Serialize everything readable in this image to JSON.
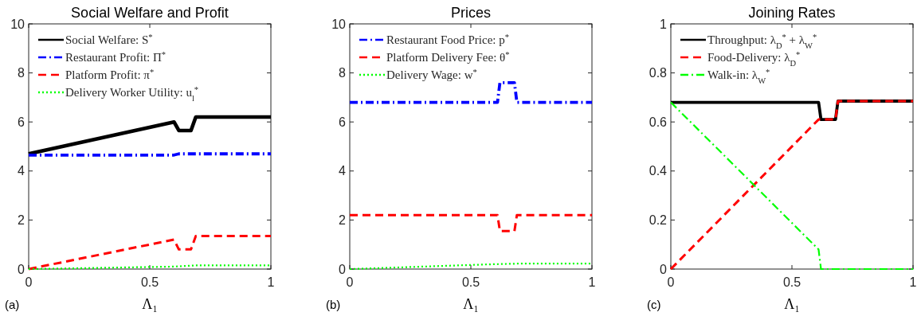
{
  "chart_data": [
    {
      "type": "line",
      "title": "Social Welfare and Profit",
      "xlabel": "Λ₁",
      "annotations": [
        "(a)"
      ],
      "xlim": [
        0,
        1
      ],
      "xticks": [
        0,
        0.5,
        1
      ],
      "ylim": [
        0,
        10
      ],
      "yticks": [
        0,
        2,
        4,
        6,
        8,
        10
      ],
      "grid": false,
      "legend": "top left",
      "series": [
        {
          "name": "Social Welfare: S$^{*}$",
          "color": "#000000",
          "line_style": "solid",
          "x": [
            0,
            0.6,
            0.62,
            0.67,
            0.69,
            1
          ],
          "values": [
            4.7,
            6.0,
            5.65,
            5.65,
            6.2,
            6.2
          ]
        },
        {
          "name": "Restaurant Profit: Π$^{*}$",
          "color": "#0000ff",
          "line_style": "dashdot",
          "x": [
            0,
            0.6,
            0.62,
            1
          ],
          "values": [
            4.65,
            4.65,
            4.7,
            4.7
          ]
        },
        {
          "name": "Platform Profit: π$^{*}$",
          "color": "#ff0000",
          "line_style": "dashed",
          "x": [
            0,
            0.6,
            0.62,
            0.67,
            0.69,
            1
          ],
          "values": [
            0,
            1.2,
            0.8,
            0.8,
            1.35,
            1.35
          ]
        },
        {
          "name": "Delivery Worker Utility: u$_{l}$$^{*}$",
          "color": "#00ff00",
          "line_style": "dotted",
          "x": [
            0,
            0.6,
            0.69,
            1
          ],
          "values": [
            0,
            0.1,
            0.15,
            0.15
          ]
        }
      ]
    },
    {
      "type": "line",
      "title": "Prices",
      "xlabel": "Λ₁",
      "annotations": [
        "(b)"
      ],
      "xlim": [
        0,
        1
      ],
      "xticks": [
        0,
        0.5,
        1
      ],
      "ylim": [
        0,
        10
      ],
      "yticks": [
        0,
        2,
        4,
        6,
        8,
        10
      ],
      "grid": false,
      "legend": "top left",
      "series": [
        {
          "name": "Restaurant Food Price: p$^{*}$",
          "color": "#0000ff",
          "line_style": "dashdot",
          "x": [
            0,
            0.61,
            0.62,
            0.68,
            0.69,
            1
          ],
          "values": [
            6.8,
            6.8,
            7.6,
            7.6,
            6.8,
            6.8
          ]
        },
        {
          "name": "Platform Delivery Fee: θ$^{*}$",
          "color": "#ff0000",
          "line_style": "dashed",
          "x": [
            0,
            0.61,
            0.62,
            0.68,
            0.69,
            1
          ],
          "values": [
            2.2,
            2.2,
            1.55,
            1.55,
            2.2,
            2.2
          ]
        },
        {
          "name": "Delivery Wage: w$^{*}$",
          "color": "#00ff00",
          "line_style": "dotted",
          "x": [
            0,
            0.6,
            0.69,
            1
          ],
          "values": [
            0,
            0.2,
            0.22,
            0.22
          ]
        }
      ]
    },
    {
      "type": "line",
      "title": "Joining Rates",
      "xlabel": "Λ₁",
      "annotations": [
        "(c)"
      ],
      "xlim": [
        0,
        1
      ],
      "xticks": [
        0,
        0.5,
        1
      ],
      "ylim": [
        0,
        1
      ],
      "yticks": [
        0,
        0.2,
        0.4,
        0.6,
        0.8,
        1
      ],
      "grid": false,
      "legend": "top left",
      "series": [
        {
          "name": "Throughput: λ$_{D}$$^{*}$ + λ$_{W}$$^{*}$",
          "color": "#000000",
          "line_style": "solid",
          "x": [
            0,
            0.61,
            0.62,
            0.68,
            0.69,
            1
          ],
          "values": [
            0.68,
            0.68,
            0.61,
            0.61,
            0.685,
            0.685
          ]
        },
        {
          "name": "Food-Delivery: λ$_{D}$$^{*}$",
          "color": "#ff0000",
          "line_style": "dashed",
          "x": [
            0,
            0.61,
            0.68,
            0.69,
            1
          ],
          "values": [
            0,
            0.61,
            0.61,
            0.685,
            0.685
          ]
        },
        {
          "name": "Walk-in: λ$_{W}$$^{*}$",
          "color": "#00ff00",
          "line_style": "dashdot",
          "x": [
            0,
            0.61,
            0.62,
            1
          ],
          "values": [
            0.68,
            0.08,
            0,
            0
          ]
        }
      ]
    }
  ]
}
